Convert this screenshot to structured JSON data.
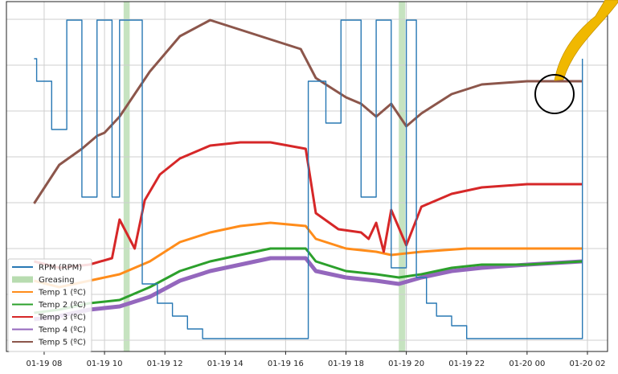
{
  "chart_data": {
    "type": "line",
    "title": "",
    "xlabel": "",
    "ylabel": "",
    "x_ticks": [
      "01-19 08",
      "01-19 10",
      "01-19 12",
      "01-19 14",
      "01-19 16",
      "01-19 18",
      "01-19 20",
      "01-19 22",
      "01-20 00",
      "01-20 02"
    ],
    "xlim": [
      "01-19 06:45",
      "01-20 02:40"
    ],
    "grid": true,
    "legend_position": "lower-left",
    "y_tick_labels_visible": false,
    "greasing_intervals": [
      [
        "01-19 10:38",
        "01-19 10:50"
      ],
      [
        "01-19 19:45",
        "01-19 19:58"
      ]
    ],
    "series": [
      {
        "name": "RPM (RPM)",
        "color": "#2878b4",
        "step": true,
        "points": [
          [
            "01-19 07:40",
            0.88
          ],
          [
            "01-19 07:45",
            0.81
          ],
          [
            "01-19 08:15",
            0.66
          ],
          [
            "01-19 08:45",
            1.0
          ],
          [
            "01-19 09:15",
            0.45
          ],
          [
            "01-19 09:45",
            1.0
          ],
          [
            "01-19 10:15",
            0.45
          ],
          [
            "01-19 10:30",
            1.0
          ],
          [
            "01-19 11:00",
            1.0
          ],
          [
            "01-19 11:15",
            0.18
          ],
          [
            "01-19 11:45",
            0.12
          ],
          [
            "01-19 12:15",
            0.08
          ],
          [
            "01-19 12:45",
            0.04
          ],
          [
            "01-19 13:15",
            0.01
          ],
          [
            "01-19 16:45",
            0.01
          ],
          [
            "01-19 16:45",
            0.81
          ],
          [
            "01-19 17:10",
            0.81
          ],
          [
            "01-19 17:20",
            0.68
          ],
          [
            "01-19 17:45",
            0.68
          ],
          [
            "01-19 17:50",
            1.0
          ],
          [
            "01-19 18:30",
            1.0
          ],
          [
            "01-19 18:30",
            0.45
          ],
          [
            "01-19 19:00",
            0.45
          ],
          [
            "01-19 19:00",
            1.0
          ],
          [
            "01-19 19:30",
            1.0
          ],
          [
            "01-19 19:30",
            0.23
          ],
          [
            "01-19 20:00",
            0.23
          ],
          [
            "01-19 20:00",
            1.0
          ],
          [
            "01-19 20:20",
            1.0
          ],
          [
            "01-19 20:20",
            0.2
          ],
          [
            "01-19 20:40",
            0.2
          ],
          [
            "01-19 20:40",
            0.12
          ],
          [
            "01-19 21:00",
            0.08
          ],
          [
            "01-19 21:30",
            0.05
          ],
          [
            "01-19 22:00",
            0.01
          ],
          [
            "01-20 01:45",
            0.01
          ],
          [
            "01-20 01:50",
            0.88
          ]
        ]
      },
      {
        "name": "Greasing",
        "color": "#b8dcb0",
        "kind": "band"
      },
      {
        "name": "Temp 1 (ºC)",
        "color": "#ff8c1a",
        "points": [
          [
            "01-19 07:40",
            0.19
          ],
          [
            "01-19 08:30",
            0.17
          ],
          [
            "01-19 09:30",
            0.19
          ],
          [
            "01-19 10:30",
            0.21
          ],
          [
            "01-19 11:30",
            0.25
          ],
          [
            "01-19 12:30",
            0.31
          ],
          [
            "01-19 13:30",
            0.34
          ],
          [
            "01-19 14:30",
            0.36
          ],
          [
            "01-19 15:30",
            0.37
          ],
          [
            "01-19 16:40",
            0.36
          ],
          [
            "01-19 17:00",
            0.32
          ],
          [
            "01-19 18:00",
            0.29
          ],
          [
            "01-19 19:00",
            0.28
          ],
          [
            "01-19 19:30",
            0.27
          ],
          [
            "01-19 20:30",
            0.28
          ],
          [
            "01-19 22:00",
            0.29
          ],
          [
            "01-20 00:00",
            0.29
          ],
          [
            "01-20 01:50",
            0.29
          ]
        ]
      },
      {
        "name": "Temp 2 (ºC)",
        "color": "#2ca02c",
        "points": [
          [
            "01-19 07:40",
            0.09
          ],
          [
            "01-19 08:30",
            0.1
          ],
          [
            "01-19 09:30",
            0.12
          ],
          [
            "01-19 10:30",
            0.13
          ],
          [
            "01-19 11:30",
            0.17
          ],
          [
            "01-19 12:30",
            0.22
          ],
          [
            "01-19 13:30",
            0.25
          ],
          [
            "01-19 14:30",
            0.27
          ],
          [
            "01-19 15:30",
            0.29
          ],
          [
            "01-19 16:40",
            0.29
          ],
          [
            "01-19 17:00",
            0.25
          ],
          [
            "01-19 18:00",
            0.22
          ],
          [
            "01-19 19:00",
            0.21
          ],
          [
            "01-19 19:45",
            0.2
          ],
          [
            "01-19 20:30",
            0.21
          ],
          [
            "01-19 21:30",
            0.23
          ],
          [
            "01-19 22:30",
            0.24
          ],
          [
            "01-20 00:00",
            0.24
          ],
          [
            "01-20 01:50",
            0.25
          ]
        ]
      },
      {
        "name": "Temp 3 (ºC)",
        "color": "#d62728",
        "points": [
          [
            "01-19 07:40",
            0.25
          ],
          [
            "01-19 08:30",
            0.23
          ],
          [
            "01-19 09:30",
            0.24
          ],
          [
            "01-19 10:15",
            0.26
          ],
          [
            "01-19 10:30",
            0.38
          ],
          [
            "01-19 11:00",
            0.29
          ],
          [
            "01-19 11:20",
            0.44
          ],
          [
            "01-19 11:50",
            0.52
          ],
          [
            "01-19 12:30",
            0.57
          ],
          [
            "01-19 13:30",
            0.61
          ],
          [
            "01-19 14:30",
            0.62
          ],
          [
            "01-19 15:30",
            0.62
          ],
          [
            "01-19 16:40",
            0.6
          ],
          [
            "01-19 17:00",
            0.4
          ],
          [
            "01-19 17:45",
            0.35
          ],
          [
            "01-19 18:30",
            0.34
          ],
          [
            "01-19 18:45",
            0.32
          ],
          [
            "01-19 19:00",
            0.37
          ],
          [
            "01-19 19:15",
            0.28
          ],
          [
            "01-19 19:30",
            0.41
          ],
          [
            "01-19 20:00",
            0.3
          ],
          [
            "01-19 20:30",
            0.42
          ],
          [
            "01-19 21:30",
            0.46
          ],
          [
            "01-19 22:30",
            0.48
          ],
          [
            "01-20 00:00",
            0.49
          ],
          [
            "01-20 01:50",
            0.49
          ]
        ]
      },
      {
        "name": "Temp 4 (ºC)",
        "color": "#9467bd",
        "points": [
          [
            "01-19 07:40",
            0.07
          ],
          [
            "01-19 08:30",
            0.08
          ],
          [
            "01-19 09:30",
            0.1
          ],
          [
            "01-19 10:30",
            0.11
          ],
          [
            "01-19 11:30",
            0.14
          ],
          [
            "01-19 12:30",
            0.19
          ],
          [
            "01-19 13:30",
            0.22
          ],
          [
            "01-19 14:30",
            0.24
          ],
          [
            "01-19 15:30",
            0.26
          ],
          [
            "01-19 16:40",
            0.26
          ],
          [
            "01-19 17:00",
            0.22
          ],
          [
            "01-19 18:00",
            0.2
          ],
          [
            "01-19 19:00",
            0.19
          ],
          [
            "01-19 19:45",
            0.18
          ],
          [
            "01-19 20:30",
            0.2
          ],
          [
            "01-19 21:30",
            0.22
          ],
          [
            "01-19 22:30",
            0.23
          ],
          [
            "01-20 00:00",
            0.24
          ],
          [
            "01-20 01:50",
            0.25
          ]
        ]
      },
      {
        "name": "Temp 5 (ºC)",
        "color": "#8c564b",
        "points": [
          [
            "01-19 07:40",
            0.43
          ],
          [
            "01-19 08:30",
            0.55
          ],
          [
            "01-19 09:15",
            0.6
          ],
          [
            "01-19 09:45",
            0.64
          ],
          [
            "01-19 10:00",
            0.65
          ],
          [
            "01-19 10:30",
            0.7
          ],
          [
            "01-19 11:00",
            0.77
          ],
          [
            "01-19 11:30",
            0.84
          ],
          [
            "01-19 12:30",
            0.95
          ],
          [
            "01-19 13:30",
            1.0
          ],
          [
            "01-19 14:30",
            0.97
          ],
          [
            "01-19 15:30",
            0.94
          ],
          [
            "01-19 16:30",
            0.91
          ],
          [
            "01-19 17:00",
            0.82
          ],
          [
            "01-19 17:30",
            0.79
          ],
          [
            "01-19 18:00",
            0.76
          ],
          [
            "01-19 18:30",
            0.74
          ],
          [
            "01-19 19:00",
            0.7
          ],
          [
            "01-19 19:30",
            0.74
          ],
          [
            "01-19 20:00",
            0.67
          ],
          [
            "01-19 20:30",
            0.71
          ],
          [
            "01-19 21:30",
            0.77
          ],
          [
            "01-19 22:30",
            0.8
          ],
          [
            "01-20 00:00",
            0.81
          ],
          [
            "01-20 01:50",
            0.81
          ]
        ]
      }
    ]
  }
}
